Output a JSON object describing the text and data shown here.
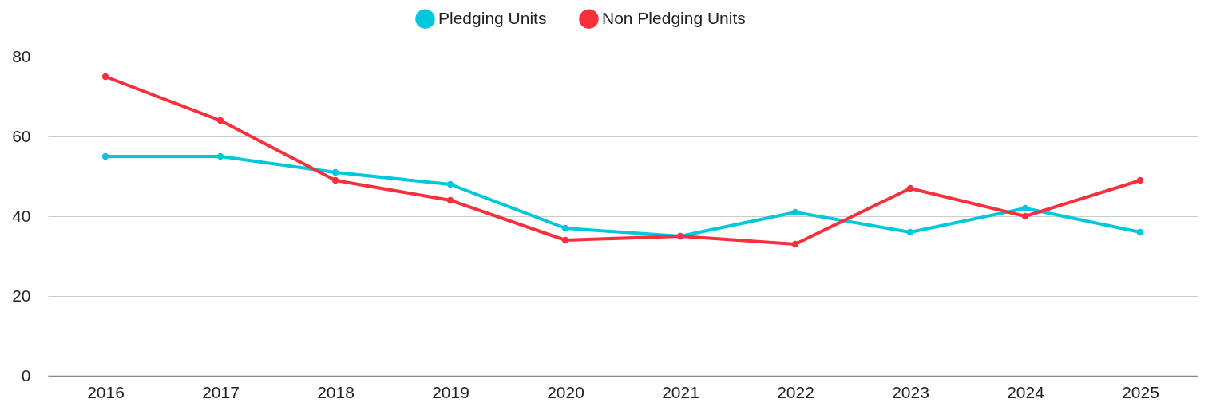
{
  "chart_data": {
    "type": "line",
    "categories": [
      "2016",
      "2017",
      "2018",
      "2019",
      "2020",
      "2021",
      "2022",
      "2023",
      "2024",
      "2025"
    ],
    "series": [
      {
        "name": "Pledging Units",
        "color": "#00c8dc",
        "values": [
          55,
          55,
          51,
          48,
          37,
          35,
          41,
          36,
          42,
          36
        ]
      },
      {
        "name": "Non Pledging Units",
        "color": "#f7303e",
        "values": [
          75,
          64,
          49,
          44,
          34,
          35,
          33,
          47,
          40,
          49
        ]
      }
    ],
    "ylim": [
      0,
      80
    ],
    "yticks": [
      0,
      20,
      40,
      60,
      80
    ],
    "grid": "y",
    "legend": "top",
    "marker": "circle",
    "line_style": "solid"
  }
}
